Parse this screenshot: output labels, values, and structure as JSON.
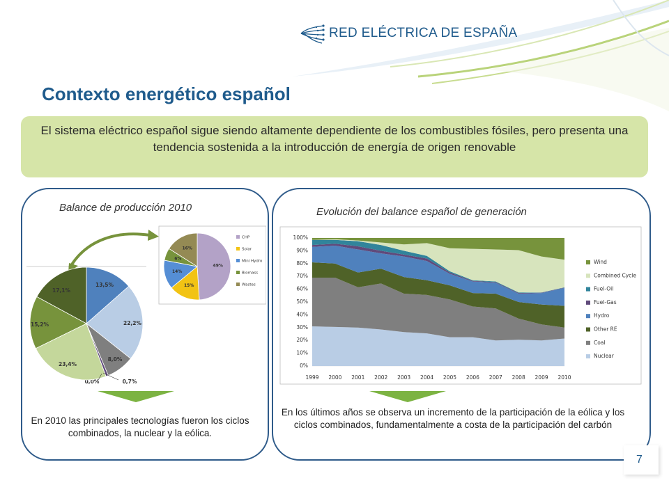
{
  "header": {
    "logo_text": "RED ELÉCTRICA DE ESPAÑA",
    "title": "Contexto energético español"
  },
  "banner": {
    "text": "El sistema eléctrico español sigue siendo altamente dependiente de los combustibles fósiles, pero presenta una tendencia sostenida a la introducción de energía de origen renovable"
  },
  "left_panel": {
    "title": "Balance de producción 2010",
    "caption": "En 2010 las principales tecnologías fueron los ciclos combinados, la nuclear y la eólica."
  },
  "right_panel": {
    "title": "Evolución del balance español de generación",
    "caption": "En los últimos años se observa un incremento de la participación de la eólica y los ciclos combinados, fundamentalmente a costa de la participación del carbón"
  },
  "page_number": "7",
  "colors": {
    "title_blue": "#1f5b8c",
    "banner_green": "#d6e5a8",
    "arrow_green": "#7cb342"
  },
  "chart_data": [
    {
      "type": "pie",
      "slices": [
        {
          "label": "13,5%",
          "value": 13.5,
          "color": "#4f81bd"
        },
        {
          "label": "22,2%",
          "value": 22.2,
          "color": "#b9cde5"
        },
        {
          "label": "8,0%",
          "value": 8.0,
          "color": "#7f7f7f"
        },
        {
          "label": "0,7%",
          "value": 0.7,
          "color": "#604a7b"
        },
        {
          "label": "0,0%",
          "value": 0.0,
          "color": "#31849b"
        },
        {
          "label": "23,4%",
          "value": 23.4,
          "color": "#c4d79b"
        },
        {
          "label": "15,2%",
          "value": 15.2,
          "color": "#77933c"
        },
        {
          "label": "17,1%",
          "value": 17.1,
          "color": "#4f6228"
        }
      ]
    },
    {
      "type": "pie",
      "slices": [
        {
          "label": "49%",
          "value": 49,
          "color": "#b3a2c7"
        },
        {
          "label": "15%",
          "value": 15,
          "color": "#f2c314"
        },
        {
          "label": "14%",
          "value": 14,
          "color": "#558ed5"
        },
        {
          "label": "6%",
          "value": 6,
          "color": "#77933c"
        },
        {
          "label": "16%",
          "value": 16,
          "color": "#948a54"
        }
      ],
      "legend": [
        "CHP",
        "Solar",
        "Mini Hydro",
        "Biomass",
        "Wastes"
      ]
    },
    {
      "type": "area",
      "x": [
        "1999",
        "2000",
        "2001",
        "2002",
        "2003",
        "2004",
        "2005",
        "2006",
        "2007",
        "2008",
        "2009",
        "2010"
      ],
      "yticks": [
        "0%",
        "10%",
        "20%",
        "30%",
        "40%",
        "50%",
        "60%",
        "70%",
        "80%",
        "90%",
        "100%"
      ],
      "ylim": [
        0,
        100
      ],
      "legend_position": "right",
      "series": [
        {
          "name": "Nuclear",
          "color": "#b9cde5",
          "values": [
            31,
            30.5,
            30,
            28.5,
            26.5,
            25.5,
            22.5,
            22.5,
            20,
            20.5,
            20,
            21.5
          ]
        },
        {
          "name": "Coal",
          "color": "#7f7f7f",
          "values": [
            38,
            38.5,
            31.5,
            36,
            30,
            30,
            29.5,
            24,
            25,
            16.5,
            12.5,
            8.5
          ]
        },
        {
          "name": "Other RE",
          "color": "#4f6228",
          "values": [
            12,
            11,
            11.5,
            11.5,
            13,
            11.5,
            11,
            10.5,
            11.5,
            13,
            15.5,
            17
          ]
        },
        {
          "name": "Hydro",
          "color": "#4f81bd",
          "values": [
            12,
            14,
            18,
            12,
            16,
            15,
            9,
            9,
            8.5,
            6.5,
            9,
            14
          ]
        },
        {
          "name": "Fuel-Gas",
          "color": "#604a7b",
          "values": [
            1.5,
            1.5,
            2.5,
            2,
            1.5,
            2,
            1,
            0.5,
            0.5,
            0.5,
            0.3,
            0.3
          ]
        },
        {
          "name": "Fuel-Oil",
          "color": "#31849b",
          "values": [
            4,
            3,
            4,
            4.5,
            3,
            2,
            1,
            0.5,
            0.5,
            0.5,
            0.2,
            0.2
          ]
        },
        {
          "name": "Combined Cycle",
          "color": "#d7e4bd",
          "values": [
            0,
            0.5,
            0.5,
            2,
            5,
            10,
            18,
            24.5,
            25,
            33,
            28,
            21.5
          ]
        },
        {
          "name": "Wind",
          "color": "#77933c",
          "values": [
            1.5,
            1,
            2,
            3.5,
            5,
            4,
            8,
            8.5,
            9,
            9.5,
            14.5,
            17
          ]
        }
      ]
    }
  ]
}
